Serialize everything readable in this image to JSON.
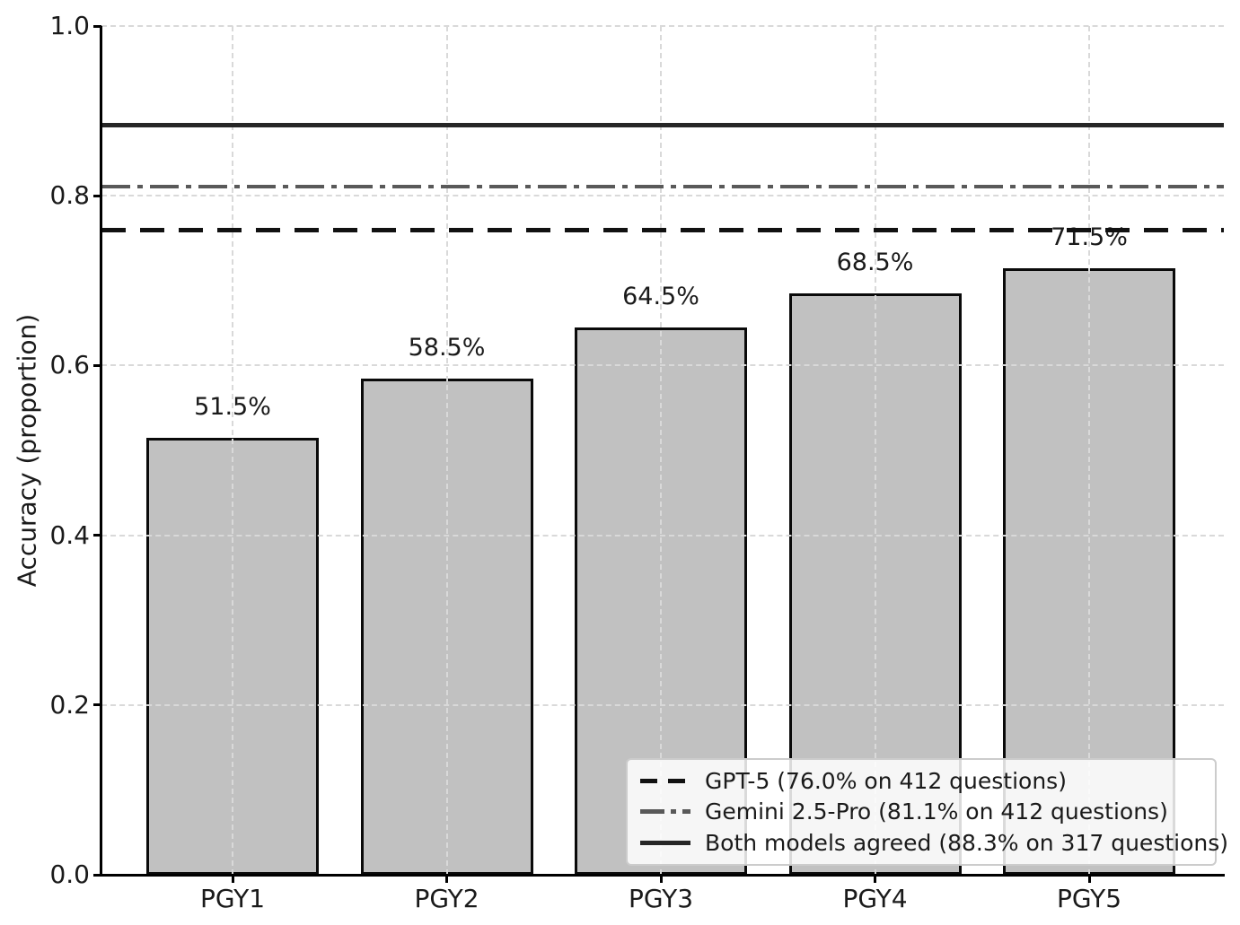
{
  "chart_data": {
    "type": "bar",
    "title": "",
    "categories": [
      "PGY1",
      "PGY2",
      "PGY3",
      "PGY4",
      "PGY5"
    ],
    "values": [
      0.515,
      0.585,
      0.645,
      0.685,
      0.715
    ],
    "bar_labels": [
      "51.5%",
      "58.5%",
      "64.5%",
      "68.5%",
      "71.5%"
    ],
    "xlabel": "",
    "ylabel": "Accuracy (proportion)",
    "ylim": [
      0.0,
      1.0
    ],
    "yticks": [
      0.0,
      0.2,
      0.4,
      0.6,
      0.8,
      1.0
    ],
    "ytick_labels": [
      "0.0",
      "0.2",
      "0.4",
      "0.6",
      "0.8",
      "1.0"
    ],
    "grid": "dashed light-gray horizontal and vertical gridlines",
    "legend_position": "lower right",
    "reference_lines": [
      {
        "name": "gpt5",
        "label": "GPT-5 (76.0% on 412 questions)",
        "value": 0.76,
        "style": "dashed",
        "color": "#111111"
      },
      {
        "name": "gemini-25-pro",
        "label": "Gemini 2.5-Pro (81.1% on 412 questions)",
        "value": 0.811,
        "style": "dashdot",
        "color": "#595959"
      },
      {
        "name": "both-models-agreed",
        "label": "Both models agreed (88.3% on 317 questions)",
        "value": 0.883,
        "style": "solid",
        "color": "#262626"
      }
    ],
    "colors": {
      "bar_fill": "#c1c1c1",
      "bar_edge": "#0a0a0a",
      "grid": "#d9d9d9",
      "axis": "#000000",
      "text": "#1a1a1a",
      "legend_border": "#cccccc",
      "legend_background": "rgba(255,255,255,0.85)"
    }
  }
}
